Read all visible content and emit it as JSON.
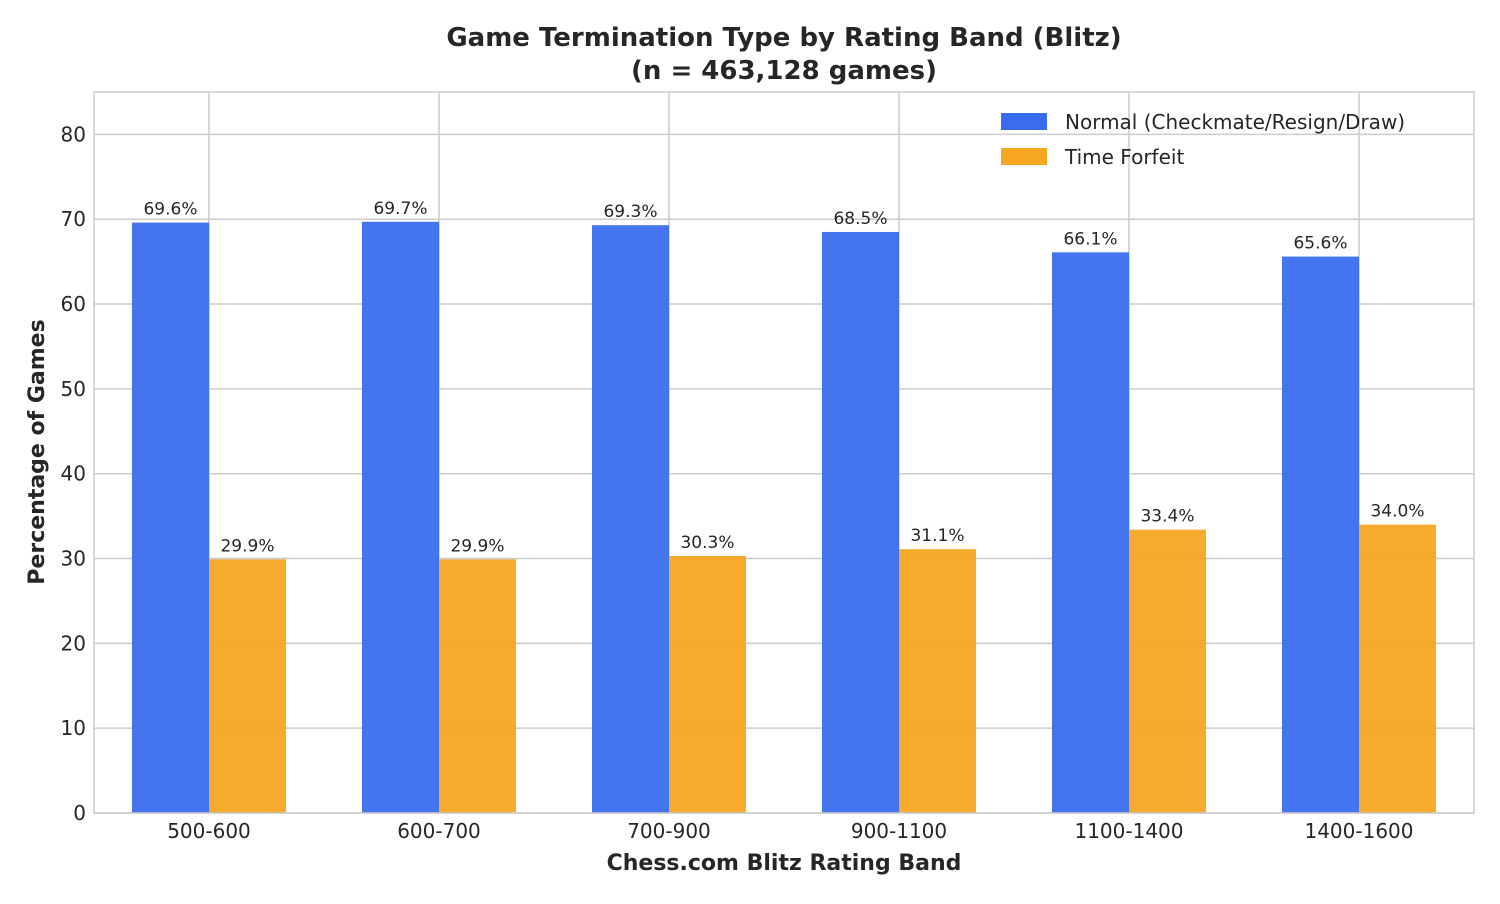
{
  "chart_data": {
    "type": "bar",
    "title": "Game Termination Type by Rating Band (Blitz)",
    "subtitle": "(n = 463,128 games)",
    "xlabel": "Chess.com Blitz Rating Band",
    "ylabel": "Percentage of Games",
    "categories": [
      "500-600",
      "600-700",
      "700-900",
      "900-1100",
      "1100-1400",
      "1400-1600"
    ],
    "ylim": [
      0,
      85
    ],
    "yticks": [
      0,
      10,
      20,
      30,
      40,
      50,
      60,
      70,
      80
    ],
    "grid": true,
    "legend_position": "top-right",
    "series": [
      {
        "name": "Normal (Checkmate/Resign/Draw)",
        "color": "#3a6ded",
        "values": [
          69.6,
          69.7,
          69.3,
          68.5,
          66.1,
          65.6
        ],
        "labels": [
          "69.6%",
          "69.7%",
          "69.3%",
          "68.5%",
          "66.1%",
          "65.6%"
        ]
      },
      {
        "name": "Time Forfeit",
        "color": "#f5a623",
        "values": [
          29.9,
          29.9,
          30.3,
          31.1,
          33.4,
          34.0
        ],
        "labels": [
          "29.9%",
          "29.9%",
          "30.3%",
          "31.1%",
          "33.4%",
          "34.0%"
        ]
      }
    ]
  }
}
